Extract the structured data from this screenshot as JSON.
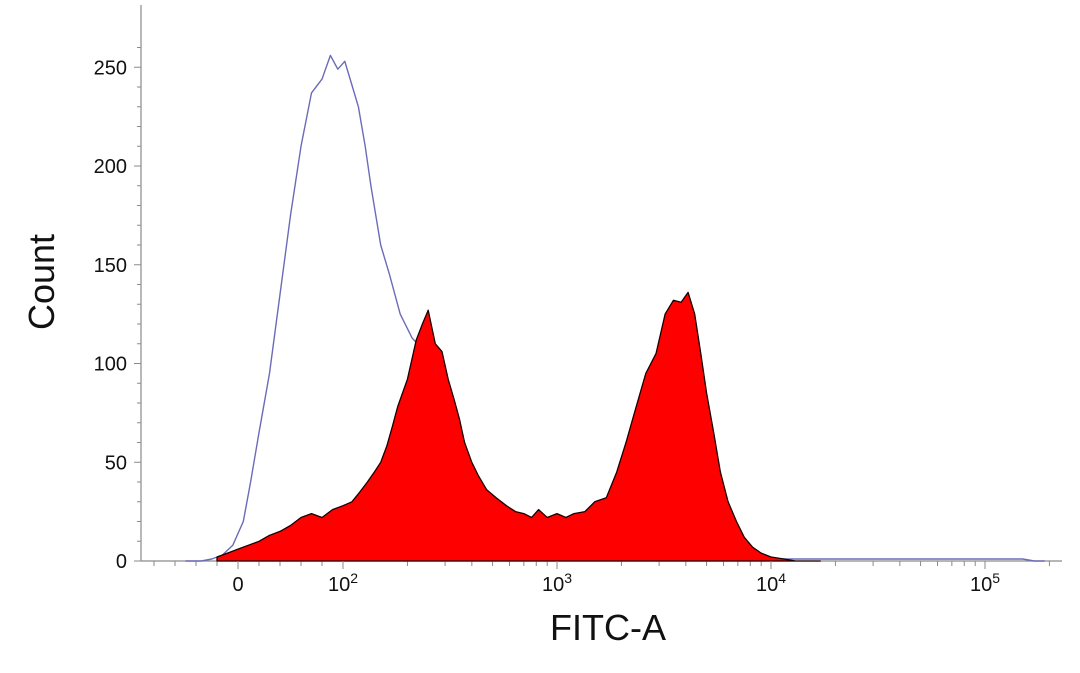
{
  "chart_data": {
    "type": "area",
    "title": "",
    "xlabel": "FITC-A",
    "ylabel": "Count",
    "x_scale": "biexponential",
    "xlim": [
      -60,
      200000
    ],
    "ylim": [
      0,
      260
    ],
    "y_ticks": [
      {
        "value": 0,
        "label": "0"
      },
      {
        "value": 50,
        "label": "50"
      },
      {
        "value": 100,
        "label": "100"
      },
      {
        "value": 150,
        "label": "150"
      },
      {
        "value": 200,
        "label": "200"
      },
      {
        "value": 250,
        "label": "250"
      }
    ],
    "x_ticks": [
      {
        "value": 0,
        "base": "0",
        "exp": ""
      },
      {
        "value": 100,
        "base": "10",
        "exp": "2"
      },
      {
        "value": 1000,
        "base": "10",
        "exp": "3"
      },
      {
        "value": 10000,
        "base": "10",
        "exp": "4"
      },
      {
        "value": 100000,
        "base": "10",
        "exp": "5"
      }
    ],
    "legend": "none",
    "grid": false,
    "series": [
      {
        "style": "outline",
        "color": "#6b6bb8",
        "x": [
          -50,
          -35,
          -25,
          -15,
          -5,
          5,
          12,
          20,
          30,
          40,
          50,
          60,
          70,
          80,
          88,
          95,
          102,
          110,
          118,
          127,
          135,
          150,
          165,
          185,
          210,
          240,
          270,
          310,
          350,
          400,
          440,
          480,
          520,
          580,
          700,
          1000,
          2000,
          5000,
          10000,
          15000,
          20000,
          50000,
          100000,
          150000,
          170000,
          190000
        ],
        "y": [
          0,
          0,
          1,
          3,
          8,
          20,
          40,
          65,
          95,
          135,
          175,
          210,
          237,
          244,
          256,
          249,
          253,
          241,
          230,
          210,
          190,
          160,
          145,
          125,
          113,
          106,
          92,
          72,
          58,
          42,
          33,
          26,
          15,
          5,
          2,
          1,
          1,
          1,
          1,
          1,
          1,
          1,
          1,
          1,
          0,
          0
        ]
      },
      {
        "style": "filled",
        "color": "#ff0000",
        "x": [
          -20,
          -10,
          0,
          10,
          20,
          30,
          40,
          50,
          60,
          70,
          80,
          90,
          100,
          110,
          120,
          130,
          140,
          150,
          160,
          170,
          180,
          200,
          220,
          235,
          250,
          270,
          290,
          310,
          330,
          350,
          370,
          400,
          430,
          470,
          520,
          580,
          640,
          700,
          760,
          820,
          900,
          1000,
          1100,
          1200,
          1350,
          1500,
          1700,
          1900,
          2100,
          2300,
          2600,
          2900,
          3200,
          3500,
          3800,
          4100,
          4400,
          4700,
          5000,
          5400,
          5800,
          6300,
          6900,
          7500,
          8200,
          9000,
          10000,
          11500,
          13000,
          15000,
          17000
        ],
        "y": [
          2,
          4,
          6,
          8,
          10,
          13,
          15,
          18,
          22,
          24,
          22,
          26,
          28,
          30,
          35,
          40,
          45,
          50,
          58,
          68,
          78,
          92,
          112,
          120,
          127,
          110,
          106,
          92,
          82,
          72,
          60,
          50,
          43,
          36,
          32,
          28,
          25,
          24,
          22,
          26,
          22,
          24,
          22,
          24,
          25,
          30,
          32,
          45,
          60,
          75,
          95,
          105,
          125,
          132,
          131,
          136,
          125,
          105,
          85,
          65,
          45,
          30,
          20,
          12,
          7,
          4,
          2,
          1,
          0,
          0,
          0
        ]
      }
    ]
  }
}
